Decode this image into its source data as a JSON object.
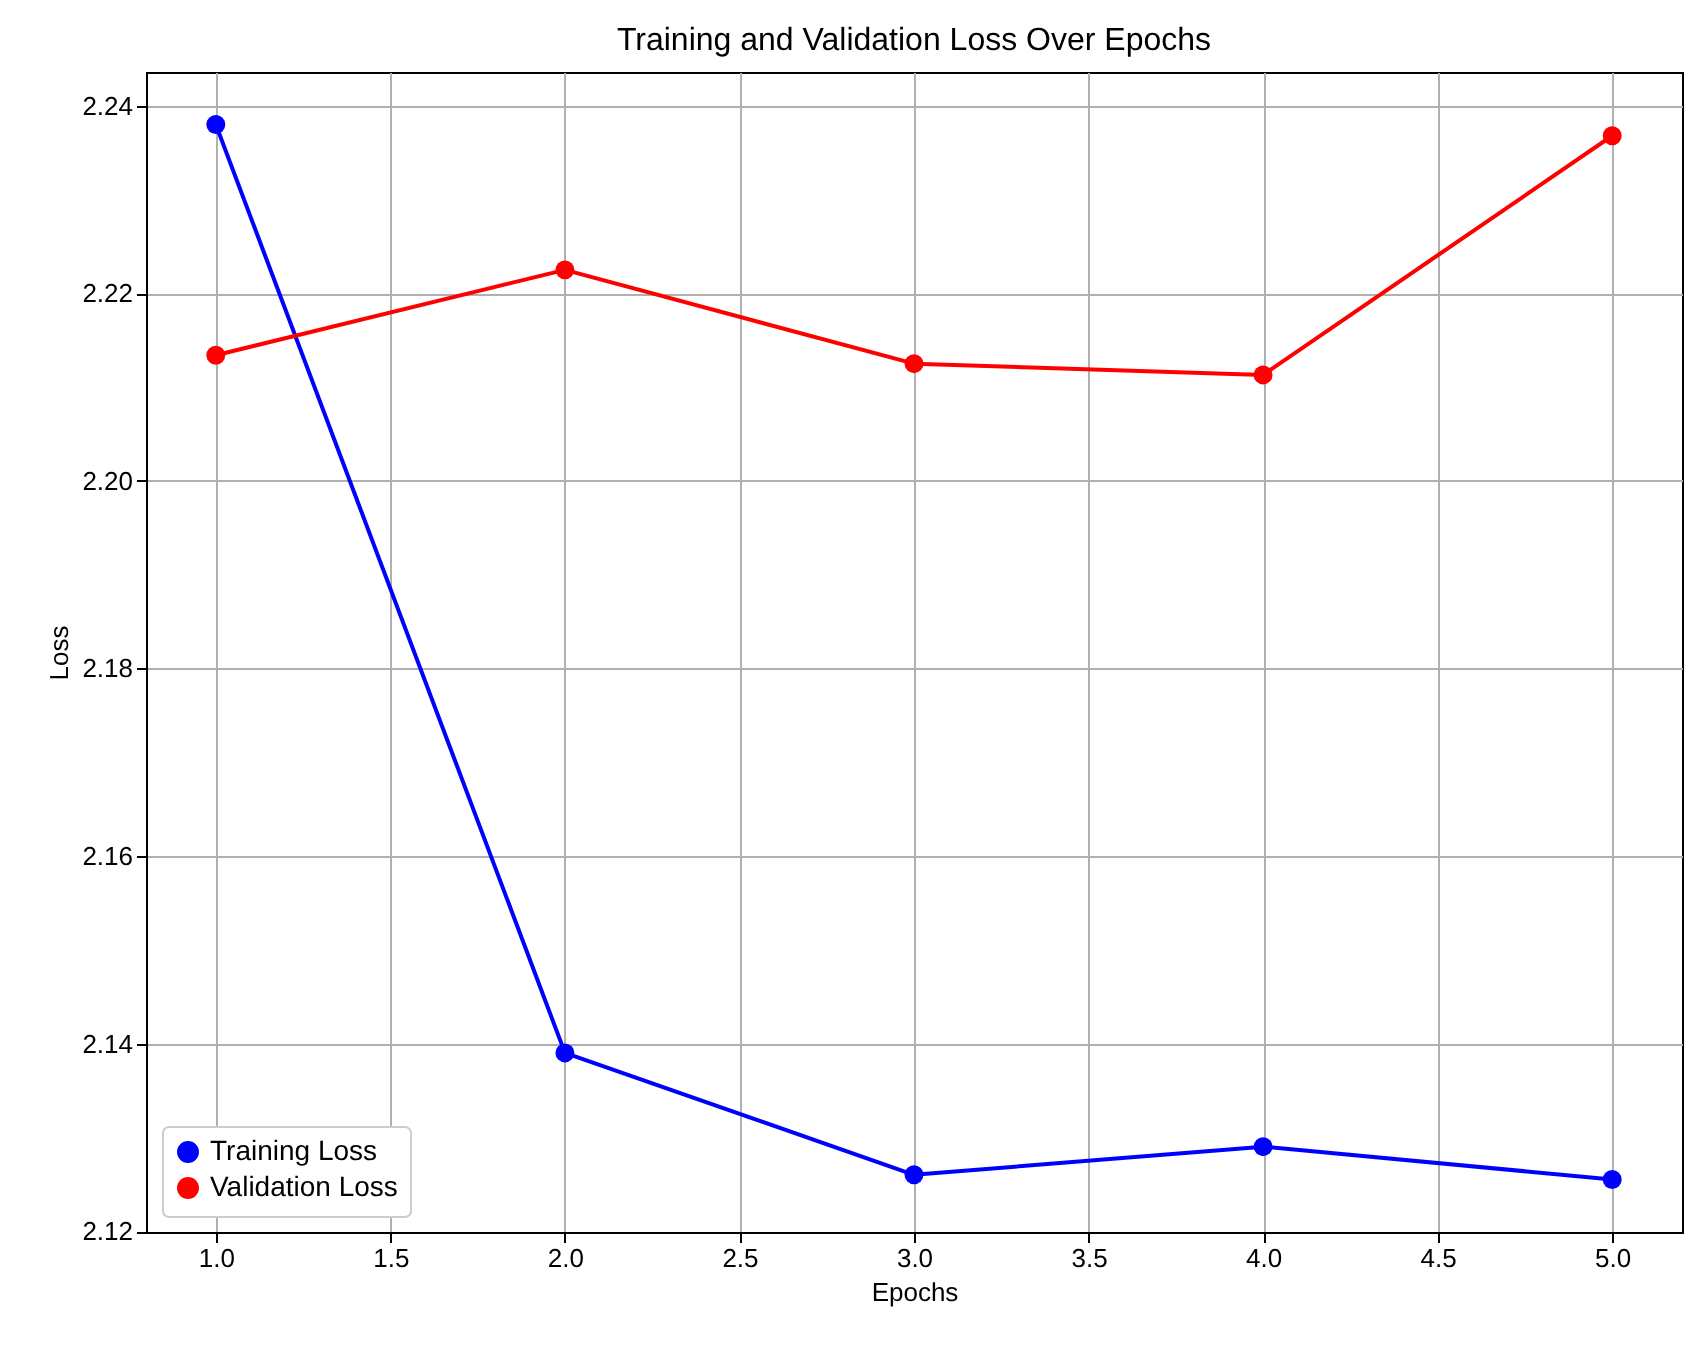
{
  "chart_data": {
    "type": "line",
    "title": "Training and Validation Loss Over Epochs",
    "xlabel": "Epochs",
    "ylabel": "Loss",
    "x": [
      1,
      2,
      3,
      4,
      5
    ],
    "series": [
      {
        "name": "Training Loss",
        "color": "#0000ff",
        "values": [
          2.238,
          2.139,
          2.126,
          2.129,
          2.1255
        ]
      },
      {
        "name": "Validation Loss",
        "color": "#ff0000",
        "values": [
          2.2134,
          2.2225,
          2.2125,
          2.2113,
          2.2368
        ]
      }
    ],
    "xlim": [
      0.8,
      5.2
    ],
    "xticks": [
      {
        "value": 1,
        "label": "1.0"
      },
      {
        "value": 1.5,
        "label": "1.5"
      },
      {
        "value": 2,
        "label": "2.0"
      },
      {
        "value": 2.5,
        "label": "2.5"
      },
      {
        "value": 3,
        "label": "3.0"
      },
      {
        "value": 3.5,
        "label": "3.5"
      },
      {
        "value": 4,
        "label": "4.0"
      },
      {
        "value": 4.5,
        "label": "4.5"
      },
      {
        "value": 5,
        "label": "5.0"
      }
    ],
    "ylim": [
      2.1199,
      2.2436
    ],
    "yticks": [
      {
        "value": 2.12,
        "label": "2.12"
      },
      {
        "value": 2.14,
        "label": "2.14"
      },
      {
        "value": 2.16,
        "label": "2.16"
      },
      {
        "value": 2.18,
        "label": "2.18"
      },
      {
        "value": 2.2,
        "label": "2.20"
      },
      {
        "value": 2.22,
        "label": "2.22"
      },
      {
        "value": 2.24,
        "label": "2.24"
      }
    ],
    "grid": true,
    "legend": "bottom left",
    "marker": "circle",
    "line_style": "solid"
  }
}
